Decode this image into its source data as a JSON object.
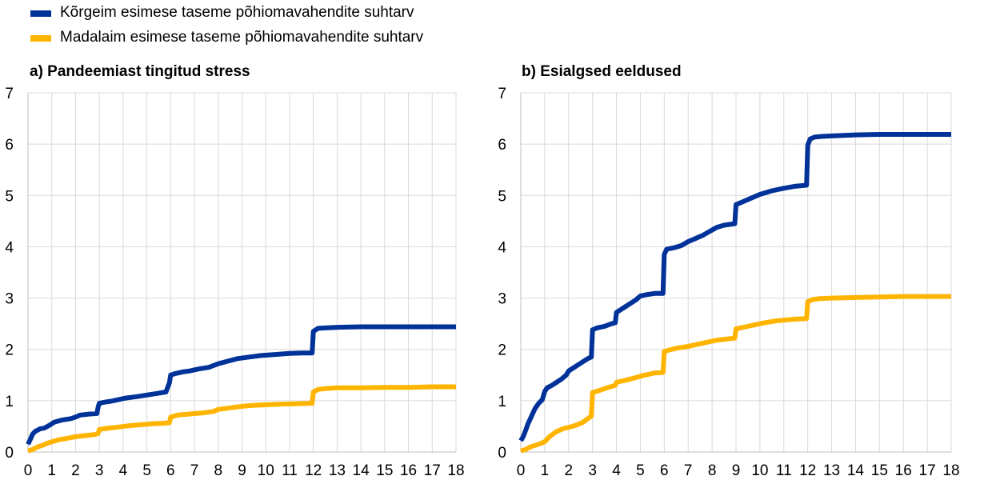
{
  "legend": [
    {
      "label": "Kõrgeim esimese taseme põhiomavahendite suhtarv",
      "color": "#003299"
    },
    {
      "label": "Madalaim esimese taseme põhiomavahendite suhtarv",
      "color": "#FFB400"
    }
  ],
  "chart_data": [
    {
      "type": "line",
      "title": "a) Pandeemiast tingitud stress",
      "xlim": [
        0,
        18
      ],
      "ylim": [
        0,
        7
      ],
      "xticks": [
        "0",
        "1",
        "2",
        "3",
        "4",
        "5",
        "6",
        "7",
        "8",
        "9",
        "10",
        "11",
        "12",
        "13",
        "14",
        "15",
        "16",
        "17",
        "18"
      ],
      "yticks": [
        "0",
        "1",
        "2",
        "3",
        "4",
        "5",
        "6",
        "7"
      ],
      "grid": true,
      "series": [
        {
          "name": "Kõrgeim esimese taseme põhiomavahendite suhtarv",
          "color": "#003299",
          "x": [
            0,
            0.1,
            0.2,
            0.3,
            0.5,
            0.7,
            0.9,
            1.1,
            1.4,
            1.8,
            2.0,
            2.2,
            2.6,
            2.9,
            2.95,
            3.0,
            3.2,
            3.5,
            3.8,
            4.1,
            4.6,
            5.0,
            5.4,
            5.8,
            5.95,
            6.0,
            6.2,
            6.5,
            6.8,
            7.2,
            7.6,
            8.0,
            8.4,
            8.8,
            9.3,
            9.8,
            10.4,
            11.0,
            11.5,
            11.95,
            12.0,
            12.2,
            12.6,
            13.0,
            14.0,
            15.0,
            16.0,
            17.0,
            18.0
          ],
          "values": [
            0.15,
            0.25,
            0.35,
            0.4,
            0.45,
            0.47,
            0.52,
            0.58,
            0.62,
            0.65,
            0.68,
            0.72,
            0.74,
            0.75,
            0.88,
            0.95,
            0.97,
            0.99,
            1.02,
            1.05,
            1.08,
            1.11,
            1.14,
            1.17,
            1.35,
            1.5,
            1.53,
            1.56,
            1.58,
            1.62,
            1.65,
            1.72,
            1.77,
            1.82,
            1.85,
            1.88,
            1.9,
            1.92,
            1.93,
            1.93,
            2.35,
            2.41,
            2.42,
            2.43,
            2.44,
            2.44,
            2.44,
            2.44,
            2.44
          ]
        },
        {
          "name": "Madalaim esimese taseme põhiomavahendite suhtarv",
          "color": "#FFB400",
          "x": [
            0,
            0.2,
            0.4,
            0.6,
            0.8,
            1.0,
            1.3,
            1.7,
            2.0,
            2.4,
            2.8,
            2.95,
            3.0,
            3.3,
            3.7,
            4.2,
            4.7,
            5.2,
            5.7,
            5.95,
            6.0,
            6.3,
            6.8,
            7.3,
            7.8,
            8.0,
            8.5,
            9.0,
            9.5,
            10.0,
            10.6,
            11.2,
            11.95,
            12.0,
            12.2,
            12.6,
            13.0,
            14.0,
            15.0,
            16.0,
            17.0,
            18.0
          ],
          "values": [
            0.02,
            0.05,
            0.1,
            0.13,
            0.17,
            0.2,
            0.24,
            0.27,
            0.3,
            0.32,
            0.34,
            0.36,
            0.44,
            0.46,
            0.48,
            0.51,
            0.53,
            0.55,
            0.56,
            0.57,
            0.68,
            0.72,
            0.74,
            0.76,
            0.79,
            0.83,
            0.86,
            0.89,
            0.91,
            0.92,
            0.93,
            0.94,
            0.95,
            1.17,
            1.22,
            1.24,
            1.25,
            1.25,
            1.26,
            1.26,
            1.27,
            1.27
          ]
        }
      ]
    },
    {
      "type": "line",
      "title": "b) Esialgsed eeldused",
      "xlim": [
        0,
        18
      ],
      "ylim": [
        0,
        7
      ],
      "xticks": [
        "0",
        "1",
        "2",
        "3",
        "4",
        "5",
        "6",
        "7",
        "8",
        "9",
        "10",
        "11",
        "12",
        "13",
        "14",
        "15",
        "16",
        "17",
        "18"
      ],
      "yticks": [
        "0",
        "1",
        "2",
        "3",
        "4",
        "5",
        "6",
        "7"
      ],
      "grid": true,
      "series": [
        {
          "name": "Kõrgeim esimese taseme põhiomavahendite suhtarv",
          "color": "#003299",
          "x": [
            0,
            0.1,
            0.2,
            0.3,
            0.4,
            0.5,
            0.6,
            0.75,
            0.9,
            1.0,
            1.1,
            1.3,
            1.5,
            1.7,
            1.9,
            2.0,
            2.2,
            2.4,
            2.6,
            2.8,
            2.95,
            3.0,
            3.2,
            3.5,
            3.8,
            3.95,
            4.0,
            4.2,
            4.4,
            4.6,
            4.8,
            5.0,
            5.3,
            5.6,
            5.95,
            6.0,
            6.1,
            6.4,
            6.7,
            7.0,
            7.3,
            7.6,
            7.9,
            8.2,
            8.5,
            8.95,
            9.0,
            9.3,
            9.6,
            10.0,
            10.5,
            11.0,
            11.5,
            11.95,
            12.0,
            12.1,
            12.3,
            12.6,
            13.0,
            14.0,
            15.0,
            16.0,
            17.0,
            18.0
          ],
          "values": [
            0.22,
            0.3,
            0.42,
            0.55,
            0.65,
            0.75,
            0.85,
            0.95,
            1.02,
            1.18,
            1.25,
            1.3,
            1.36,
            1.42,
            1.5,
            1.58,
            1.64,
            1.7,
            1.76,
            1.82,
            1.85,
            2.38,
            2.42,
            2.45,
            2.5,
            2.52,
            2.72,
            2.78,
            2.84,
            2.9,
            2.96,
            3.04,
            3.07,
            3.09,
            3.09,
            3.85,
            3.95,
            3.98,
            4.02,
            4.1,
            4.16,
            4.22,
            4.3,
            4.38,
            4.42,
            4.45,
            4.82,
            4.88,
            4.94,
            5.02,
            5.09,
            5.14,
            5.18,
            5.2,
            5.98,
            6.1,
            6.14,
            6.15,
            6.16,
            6.18,
            6.19,
            6.19,
            6.19,
            6.19
          ]
        },
        {
          "name": "Madalaim esimese taseme põhiomavahendite suhtarv",
          "color": "#FFB400",
          "x": [
            0,
            0.2,
            0.4,
            0.6,
            0.8,
            1.0,
            1.2,
            1.5,
            1.8,
            2.0,
            2.3,
            2.6,
            2.8,
            2.95,
            3.0,
            3.3,
            3.6,
            3.95,
            4.0,
            4.4,
            4.8,
            5.2,
            5.6,
            5.95,
            6.0,
            6.3,
            6.6,
            7.0,
            7.4,
            7.8,
            8.2,
            8.6,
            8.95,
            9.0,
            9.4,
            9.8,
            10.2,
            10.6,
            11.0,
            11.5,
            11.95,
            12.0,
            12.2,
            12.5,
            13.0,
            14.0,
            15.0,
            16.0,
            17.0,
            18.0
          ],
          "values": [
            0.02,
            0.05,
            0.1,
            0.13,
            0.16,
            0.2,
            0.3,
            0.4,
            0.46,
            0.48,
            0.52,
            0.58,
            0.65,
            0.7,
            1.16,
            1.2,
            1.25,
            1.3,
            1.36,
            1.4,
            1.45,
            1.5,
            1.54,
            1.55,
            1.96,
            2.0,
            2.03,
            2.06,
            2.1,
            2.14,
            2.18,
            2.2,
            2.22,
            2.4,
            2.44,
            2.48,
            2.52,
            2.55,
            2.57,
            2.59,
            2.6,
            2.93,
            2.97,
            2.99,
            3.0,
            3.01,
            3.02,
            3.03,
            3.03,
            3.03
          ]
        }
      ]
    }
  ]
}
